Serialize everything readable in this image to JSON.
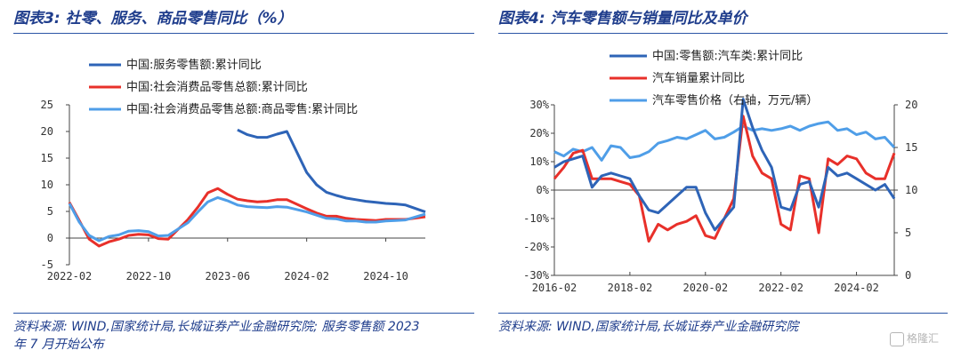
{
  "left": {
    "title": "图表3:  社零、服务、商品零售同比（%）",
    "source_line1": "资料来源: WIND,国家统计局,长城证券产业金融研究院; 服务零售额 2023",
    "source_line2": "年 7 月开始公布",
    "chart_data": {
      "type": "line",
      "title": "",
      "ylim": [
        -5,
        25
      ],
      "yticks": [
        -5,
        0,
        5,
        10,
        15,
        20,
        25
      ],
      "xlim": [
        "2022-02",
        "2025-02"
      ],
      "xticks": [
        "2022-02",
        "2022-10",
        "2023-06",
        "2024-02",
        "2024-10"
      ],
      "grid": false,
      "legend_position": "top",
      "series": [
        {
          "name": "中国:服务零售额:累计同比",
          "color": "#2e64b7",
          "x": [
            "2023-07",
            "2023-08",
            "2023-09",
            "2023-10",
            "2023-11",
            "2023-12",
            "2024-02",
            "2024-03",
            "2024-04",
            "2024-05",
            "2024-06",
            "2024-07",
            "2024-08",
            "2024-09",
            "2024-10",
            "2024-11",
            "2024-12",
            "2025-02"
          ],
          "y": [
            20.3,
            19.4,
            18.9,
            18.9,
            19.5,
            20.0,
            12.3,
            10.0,
            8.6,
            8.0,
            7.5,
            7.2,
            6.9,
            6.7,
            6.5,
            6.4,
            6.2,
            4.9
          ]
        },
        {
          "name": "中国:社会消费品零售总额:累计同比",
          "color": "#e8302a",
          "x": [
            "2022-02",
            "2022-03",
            "2022-04",
            "2022-05",
            "2022-06",
            "2022-07",
            "2022-08",
            "2022-09",
            "2022-10",
            "2022-11",
            "2022-12",
            "2023-02",
            "2023-03",
            "2023-04",
            "2023-05",
            "2023-06",
            "2023-07",
            "2023-08",
            "2023-09",
            "2023-10",
            "2023-11",
            "2023-12",
            "2024-02",
            "2024-03",
            "2024-04",
            "2024-05",
            "2024-06",
            "2024-07",
            "2024-08",
            "2024-09",
            "2024-10",
            "2024-11",
            "2024-12",
            "2025-02"
          ],
          "y": [
            6.7,
            3.3,
            -0.2,
            -1.5,
            -0.7,
            -0.2,
            0.5,
            0.7,
            0.6,
            -0.1,
            -0.2,
            3.5,
            5.8,
            8.5,
            9.3,
            8.2,
            7.3,
            7.0,
            6.8,
            6.9,
            7.2,
            7.2,
            5.5,
            4.7,
            4.1,
            4.1,
            3.7,
            3.5,
            3.4,
            3.3,
            3.5,
            3.5,
            3.5,
            4.0
          ]
        },
        {
          "name": "中国:社会消费品零售总额:商品零售:累计同比",
          "color": "#4f9ee8",
          "x": [
            "2022-02",
            "2022-03",
            "2022-04",
            "2022-05",
            "2022-06",
            "2022-07",
            "2022-08",
            "2022-09",
            "2022-10",
            "2022-11",
            "2022-12",
            "2023-02",
            "2023-03",
            "2023-04",
            "2023-05",
            "2023-06",
            "2023-07",
            "2023-08",
            "2023-09",
            "2023-10",
            "2023-11",
            "2023-12",
            "2024-02",
            "2024-03",
            "2024-04",
            "2024-05",
            "2024-06",
            "2024-07",
            "2024-08",
            "2024-09",
            "2024-10",
            "2024-11",
            "2024-12",
            "2025-02"
          ],
          "y": [
            6.5,
            3.0,
            0.5,
            -0.5,
            0.3,
            0.6,
            1.3,
            1.4,
            1.2,
            0.4,
            0.5,
            2.9,
            4.9,
            6.8,
            7.6,
            7.0,
            6.2,
            5.9,
            5.8,
            5.7,
            5.9,
            5.8,
            4.9,
            4.3,
            3.7,
            3.6,
            3.2,
            3.2,
            3.0,
            3.0,
            3.2,
            3.3,
            3.4,
            4.5
          ]
        }
      ]
    }
  },
  "right": {
    "title": "图表4:  汽车零售额与销量同比及单价",
    "source_line1": "资料来源: WIND,国家统计局,长城证券产业金融研究院",
    "chart_data": {
      "type": "line",
      "title": "",
      "ylim_left": [
        -30,
        30
      ],
      "yticks_left": [
        "-30%",
        "-20%",
        "-10%",
        "0%",
        "10%",
        "20%",
        "30%"
      ],
      "ylim_right": [
        0,
        20
      ],
      "yticks_right": [
        0,
        5,
        10,
        15,
        20
      ],
      "xlim": [
        "2016-02",
        "2025-02"
      ],
      "xticks": [
        "2016-02",
        "2018-02",
        "2020-02",
        "2022-02",
        "2024-02"
      ],
      "grid": false,
      "legend_position": "top",
      "series": [
        {
          "name": "中国:零售额:汽车类:累计同比",
          "color": "#2e64b7",
          "axis": "left",
          "x": [
            "2016-02",
            "2016-05",
            "2016-08",
            "2016-11",
            "2017-02",
            "2017-05",
            "2017-08",
            "2017-11",
            "2018-02",
            "2018-05",
            "2018-08",
            "2018-11",
            "2019-02",
            "2019-05",
            "2019-08",
            "2019-11",
            "2020-02",
            "2020-05",
            "2020-08",
            "2020-11",
            "2021-02",
            "2021-05",
            "2021-08",
            "2021-11",
            "2022-02",
            "2022-05",
            "2022-08",
            "2022-11",
            "2023-02",
            "2023-05",
            "2023-08",
            "2023-11",
            "2024-02",
            "2024-05",
            "2024-08",
            "2024-11",
            "2025-02"
          ],
          "y": [
            8,
            10,
            11,
            12,
            1,
            5,
            6,
            5,
            4,
            -2,
            -7,
            -8,
            -5,
            -2,
            1,
            1,
            -8,
            -14,
            -10,
            -6,
            32,
            22,
            14,
            8,
            -6,
            -7,
            2,
            3,
            -6,
            8,
            5,
            6,
            4,
            2,
            0,
            2,
            -3
          ]
        },
        {
          "name": "汽车销量累计同比",
          "color": "#e8302a",
          "axis": "left",
          "x": [
            "2016-02",
            "2016-05",
            "2016-08",
            "2016-11",
            "2017-02",
            "2017-05",
            "2017-08",
            "2017-11",
            "2018-02",
            "2018-05",
            "2018-08",
            "2018-11",
            "2019-02",
            "2019-05",
            "2019-08",
            "2019-11",
            "2020-02",
            "2020-05",
            "2020-08",
            "2020-11",
            "2021-02",
            "2021-05",
            "2021-08",
            "2021-11",
            "2022-02",
            "2022-05",
            "2022-08",
            "2022-11",
            "2023-02",
            "2023-05",
            "2023-08",
            "2023-11",
            "2024-02",
            "2024-05",
            "2024-08",
            "2024-11",
            "2025-02"
          ],
          "y": [
            4,
            8,
            13,
            14,
            4,
            4,
            4,
            3,
            2,
            -2,
            -18,
            -12,
            -14,
            -12,
            -11,
            -9,
            -16,
            -17,
            -10,
            -3,
            26,
            12,
            6,
            4,
            -12,
            -14,
            5,
            4,
            -15,
            11,
            9,
            12,
            11,
            6,
            4,
            4,
            13
          ]
        },
        {
          "name": "汽车零售价格（右轴，万元/辆）",
          "color": "#4f9ee8",
          "axis": "right",
          "x": [
            "2016-02",
            "2016-05",
            "2016-08",
            "2016-11",
            "2017-02",
            "2017-05",
            "2017-08",
            "2017-11",
            "2018-02",
            "2018-05",
            "2018-08",
            "2018-11",
            "2019-02",
            "2019-05",
            "2019-08",
            "2019-11",
            "2020-02",
            "2020-05",
            "2020-08",
            "2020-11",
            "2021-02",
            "2021-05",
            "2021-08",
            "2021-11",
            "2022-02",
            "2022-05",
            "2022-08",
            "2022-11",
            "2023-02",
            "2023-05",
            "2023-08",
            "2023-11",
            "2024-02",
            "2024-05",
            "2024-08",
            "2024-11",
            "2025-02"
          ],
          "y": [
            14.5,
            14.0,
            14.8,
            14.5,
            15.0,
            13.5,
            15.2,
            15.0,
            13.8,
            14.0,
            14.5,
            15.5,
            15.8,
            16.2,
            16.0,
            16.5,
            17.0,
            16.0,
            16.2,
            16.8,
            17.5,
            17.0,
            17.2,
            17.0,
            17.2,
            17.5,
            17.0,
            17.5,
            17.8,
            18.0,
            17.0,
            17.2,
            16.5,
            16.8,
            16.0,
            16.2,
            15.0
          ]
        }
      ]
    }
  },
  "watermark": "格隆汇"
}
